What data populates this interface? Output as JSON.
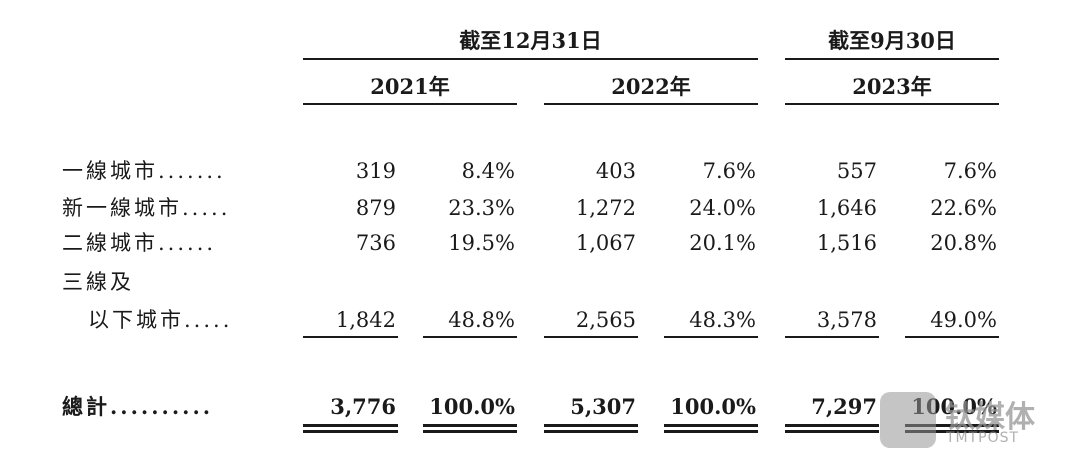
{
  "header": {
    "groups": [
      {
        "label": "截至12月31日",
        "years": [
          "2021年",
          "2022年"
        ]
      },
      {
        "label": "截至9月30日",
        "years": [
          "2023年"
        ]
      }
    ]
  },
  "rows": [
    {
      "label_lines": [
        "一線城市......."
      ],
      "cells": [
        "319",
        "8.4%",
        "403",
        "7.6%",
        "557",
        "7.6%"
      ]
    },
    {
      "label_lines": [
        "新一線城市....."
      ],
      "cells": [
        "879",
        "23.3%",
        "1,272",
        "24.0%",
        "1,646",
        "22.6%"
      ]
    },
    {
      "label_lines": [
        "二線城市......"
      ],
      "cells": [
        "736",
        "19.5%",
        "1,067",
        "20.1%",
        "1,516",
        "20.8%"
      ]
    },
    {
      "label_lines": [
        "三線及",
        "以下城市....."
      ],
      "cells": [
        "1,842",
        "48.8%",
        "2,565",
        "48.3%",
        "3,578",
        "49.0%"
      ]
    }
  ],
  "total": {
    "label": "總計..........",
    "cells": [
      "3,776",
      "100.0%",
      "5,307",
      "100.0%",
      "7,297",
      "100.0%"
    ]
  },
  "watermark": {
    "text": "钛媒体",
    "sub": "TMTPOST"
  }
}
